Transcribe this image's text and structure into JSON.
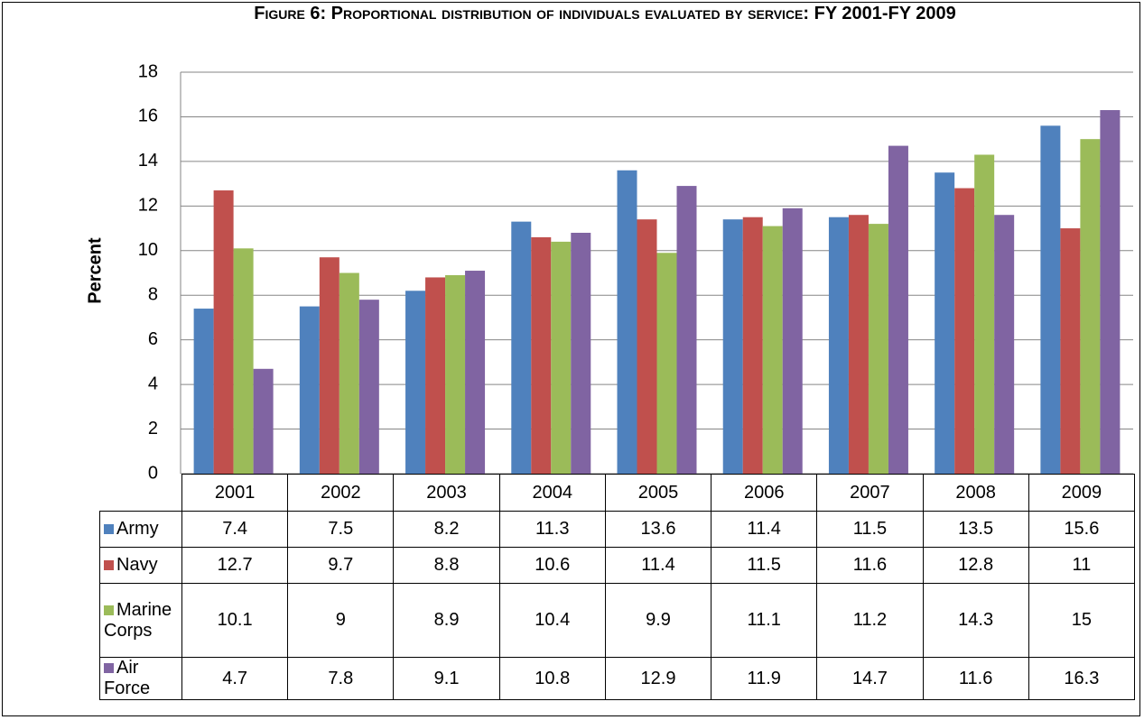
{
  "chart_data": {
    "type": "bar",
    "title": "Figure 6: Proportional distribution of individuals evaluated by service: FY 2001-FY 2009",
    "y_label": "Percent",
    "categories": [
      "2001",
      "2002",
      "2003",
      "2004",
      "2005",
      "2006",
      "2007",
      "2008",
      "2009"
    ],
    "series": [
      {
        "name": "Army",
        "color": "#4f81bd",
        "values": [
          7.4,
          7.5,
          8.2,
          11.3,
          13.6,
          11.4,
          11.5,
          13.5,
          15.6
        ]
      },
      {
        "name": "Navy",
        "color": "#c0504d",
        "values": [
          12.7,
          9.7,
          8.8,
          10.6,
          11.4,
          11.5,
          11.6,
          12.8,
          11
        ]
      },
      {
        "name": "Marine Corps",
        "color": "#9bbb59",
        "values": [
          10.1,
          9,
          8.9,
          10.4,
          9.9,
          11.1,
          11.2,
          14.3,
          15
        ]
      },
      {
        "name": "Air Force",
        "color": "#8064a2",
        "values": [
          4.7,
          7.8,
          9.1,
          10.8,
          12.9,
          11.9,
          14.7,
          11.6,
          16.3
        ]
      }
    ],
    "ylim": [
      0,
      18
    ],
    "yticks": [
      0,
      2,
      4,
      6,
      8,
      10,
      12,
      14,
      16,
      18
    ],
    "grid": true
  }
}
